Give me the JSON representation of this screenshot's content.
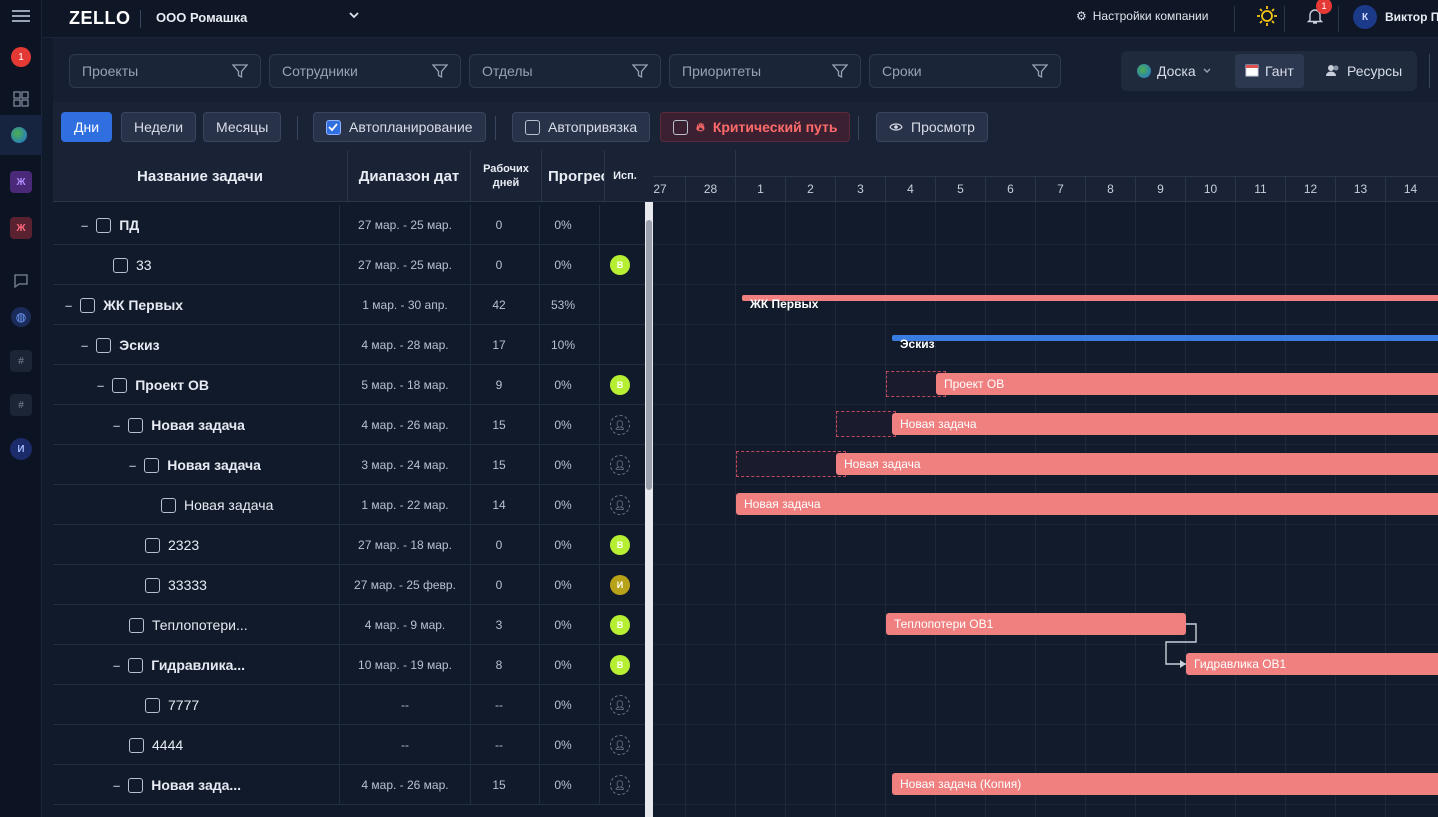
{
  "app": {
    "brand": "ZELLO",
    "company": "ООО Ромашка",
    "settings_label": "Настройки компании",
    "notif_count": "1",
    "user_initial": "К",
    "user_name": "Виктор П"
  },
  "rail": {
    "badge": "1",
    "ws1": "Ж",
    "ws2": "Ж",
    "hash1": "#",
    "hash2": "#",
    "user_initial": "И"
  },
  "filters": [
    "Проекты",
    "Сотрудники",
    "Отделы",
    "Приоритеты",
    "Сроки"
  ],
  "views": {
    "board": "Доска",
    "gantt": "Гант",
    "resources": "Ресурсы"
  },
  "toolbar": {
    "days": "Дни",
    "weeks": "Недели",
    "months": "Месяцы",
    "autoplan": "Автопланирование",
    "autobind": "Автопривязка",
    "critical": "Критический путь",
    "preview": "Просмотр"
  },
  "columns": {
    "name": "Название задачи",
    "range": "Диапазон дат",
    "workdays": "Рабочих дней",
    "progress": "Прогресс",
    "assignee": "Исп."
  },
  "rows": [
    {
      "name": "ПД",
      "range": "27 мар. - 25 мар.",
      "days": "0",
      "progress": "0%",
      "avatar": ""
    },
    {
      "name": "33",
      "range": "27 мар. - 25 мар.",
      "days": "0",
      "progress": "0%",
      "avatar": "В"
    },
    {
      "name": "ЖК Первых",
      "range": "1 мар. - 30 апр.",
      "days": "42",
      "progress": "53%",
      "avatar": ""
    },
    {
      "name": "Эскиз",
      "range": "4 мар. - 28 мар.",
      "days": "17",
      "progress": "10%",
      "avatar": ""
    },
    {
      "name": "Проект ОВ",
      "range": "5 мар. - 18 мар.",
      "days": "9",
      "progress": "0%",
      "avatar": "В"
    },
    {
      "name": "Новая задача",
      "range": "4 мар. - 26 мар.",
      "days": "15",
      "progress": "0%",
      "avatar": ""
    },
    {
      "name": "Новая задача",
      "range": "3 мар. - 24 мар.",
      "days": "15",
      "progress": "0%",
      "avatar": ""
    },
    {
      "name": "Новая задача",
      "range": "1 мар. - 22 мар.",
      "days": "14",
      "progress": "0%",
      "avatar": ""
    },
    {
      "name": "2323",
      "range": "27 мар. - 18 мар.",
      "days": "0",
      "progress": "0%",
      "avatar": "В"
    },
    {
      "name": "33333",
      "range": "27 мар. - 25 февр.",
      "days": "0",
      "progress": "0%",
      "avatar": "И"
    },
    {
      "name": "Теплопотери...",
      "range": "4 мар. - 9 мар.",
      "days": "3",
      "progress": "0%",
      "avatar": "В"
    },
    {
      "name": "Гидравлика...",
      "range": "10 мар. - 19 мар.",
      "days": "8",
      "progress": "0%",
      "avatar": "В"
    },
    {
      "name": "7777",
      "range": "--",
      "days": "--",
      "progress": "0%",
      "avatar": ""
    },
    {
      "name": "4444",
      "range": "--",
      "days": "--",
      "progress": "0%",
      "avatar": ""
    },
    {
      "name": "Новая зада...",
      "range": "4 мар. - 26 мар.",
      "days": "15",
      "progress": "0%",
      "avatar": ""
    }
  ],
  "days": [
    "27",
    "28",
    "1",
    "2",
    "3",
    "4",
    "5",
    "6",
    "7",
    "8",
    "9",
    "10",
    "11",
    "12",
    "13",
    "14"
  ],
  "bars": {
    "zhk": "ЖК Первых",
    "eskiz": "Эскиз",
    "proekt": "Проект ОВ",
    "nz1": "Новая задача",
    "nz2": "Новая задача",
    "nz3": "Новая задача",
    "teplo": "Теплопотери ОВ1",
    "gidra": "Гидравлика ОВ1",
    "copy": "Новая задача (Копия)"
  },
  "colors": {
    "accent": "#2f6fe0",
    "bar": "#f08080",
    "critical": "#ff6b6b",
    "avatar_green": "#b6ee32"
  }
}
